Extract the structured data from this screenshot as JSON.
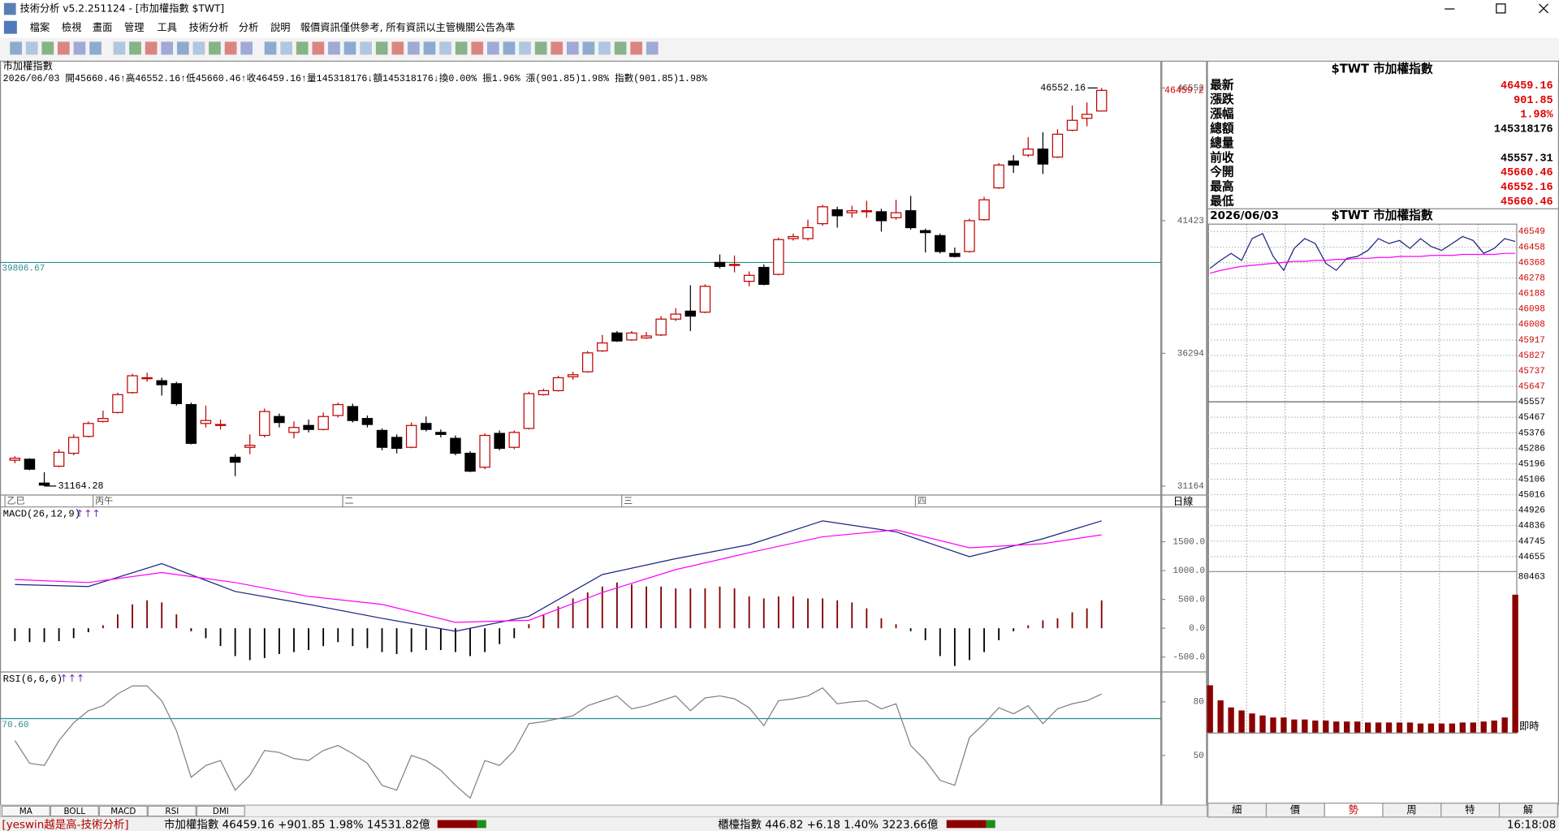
{
  "window": {
    "title": "技術分析 v5.2.251124 - [市加權指數 $TWT]",
    "menu": [
      "檔案",
      "檢視",
      "畫面",
      "管理",
      "工具",
      "技術分析",
      "分析",
      "說明"
    ],
    "notice": "報價資訊僅供參考, 所有資訊以主管機關公告為準"
  },
  "chart": {
    "type": "candlestick",
    "title": "市加權指數",
    "info": "2026/06/03 開45660.46↑高46552.16↑低45660.46↑收46459.16↑量145318176↓額145318176↓換0.00% 振1.96% 漲(901.85)1.98% 指數(901.85)1.98%",
    "ylim": [
      30818,
      47570
    ],
    "yticks": [
      31164,
      36294,
      41423,
      46552
    ],
    "reference": 39806.67,
    "last": 46459.2,
    "x_labels": [
      "乙巳",
      "丙午",
      "二",
      "三",
      "四"
    ],
    "period": "日線",
    "up_color": "#c00000",
    "down_color": "#000000",
    "reference_color": "#2e8b8b",
    "candles": [
      [
        32163,
        32317,
        32048,
        32240
      ],
      [
        32201,
        32240,
        31778,
        31817
      ],
      [
        31279,
        31701,
        31164.28,
        31202
      ],
      [
        31932,
        32585,
        31893,
        32470
      ],
      [
        32432,
        33161,
        32355,
        33046
      ],
      [
        33084,
        33661,
        33046,
        33584
      ],
      [
        33661,
        34084,
        33622,
        33776
      ],
      [
        34007,
        34775,
        33968,
        34698
      ],
      [
        34775,
        35505,
        34737,
        35428
      ],
      [
        35352,
        35545,
        35198,
        35352
      ],
      [
        35236,
        35352,
        34660,
        35082
      ],
      [
        35121,
        35198,
        34275,
        34352
      ],
      [
        34314,
        34390,
        32777,
        32816
      ],
      [
        33584,
        34275,
        33430,
        33699
      ],
      [
        33545,
        33738,
        33353,
        33545
      ],
      [
        32278,
        32393,
        31547,
        32086
      ],
      [
        32662,
        33161,
        32393,
        32739
      ],
      [
        33123,
        34160,
        33046,
        34045
      ],
      [
        33853,
        33968,
        33430,
        33622
      ],
      [
        33238,
        33661,
        33008,
        33430
      ],
      [
        33507,
        33738,
        33238,
        33353
      ],
      [
        33353,
        34007,
        33315,
        33853
      ],
      [
        33891,
        34390,
        33814,
        34314
      ],
      [
        34237,
        34352,
        33622,
        33699
      ],
      [
        33776,
        33891,
        33430,
        33545
      ],
      [
        33315,
        33392,
        32547,
        32662
      ],
      [
        33046,
        33161,
        32432,
        32624
      ],
      [
        32662,
        33622,
        32624,
        33507
      ],
      [
        33584,
        33853,
        33276,
        33353
      ],
      [
        33238,
        33353,
        33046,
        33161
      ],
      [
        33008,
        33123,
        32355,
        32432
      ],
      [
        32432,
        32509,
        31701,
        31740
      ],
      [
        31893,
        33200,
        31817,
        33123
      ],
      [
        33200,
        33315,
        32547,
        32624
      ],
      [
        32662,
        33315,
        32585,
        33238
      ],
      [
        33392,
        34813,
        33353,
        34737
      ],
      [
        34698,
        34929,
        34660,
        34852
      ],
      [
        34852,
        35428,
        34813,
        35352
      ],
      [
        35390,
        35582,
        35275,
        35467
      ],
      [
        35582,
        36389,
        35545,
        36312
      ],
      [
        36389,
        37004,
        36350,
        36696
      ],
      [
        37081,
        37158,
        36735,
        36773
      ],
      [
        36812,
        37158,
        36773,
        37081
      ],
      [
        36889,
        37119,
        36850,
        36966
      ],
      [
        37004,
        37734,
        36966,
        37618
      ],
      [
        37618,
        38041,
        37541,
        37810
      ],
      [
        37926,
        38925,
        37157,
        37734
      ],
      [
        37887,
        38963,
        37849,
        38886
      ],
      [
        39808,
        40115,
        39577,
        39654
      ],
      [
        39731,
        40077,
        39424,
        39731
      ],
      [
        39078,
        39462,
        38886,
        39309
      ],
      [
        39616,
        39731,
        38925,
        38963
      ],
      [
        39347,
        40769,
        39309,
        40692
      ],
      [
        40730,
        40922,
        40653,
        40807
      ],
      [
        40730,
        41461,
        40653,
        41153
      ],
      [
        41306,
        42036,
        41230,
        41959
      ],
      [
        41844,
        41959,
        41153,
        41614
      ],
      [
        41729,
        41998,
        41537,
        41806
      ],
      [
        41806,
        42190,
        41537,
        41806
      ],
      [
        41768,
        41883,
        40999,
        41422
      ],
      [
        41537,
        42229,
        41460,
        41729
      ],
      [
        41806,
        42382,
        41076,
        41153
      ],
      [
        41038,
        41115,
        40192,
        40961
      ],
      [
        40845,
        40922,
        40154,
        40230
      ],
      [
        40154,
        40384,
        40000,
        40038
      ],
      [
        40230,
        41499,
        40192,
        41422
      ],
      [
        41460,
        42344,
        41422,
        42229
      ],
      [
        42690,
        43651,
        42651,
        43574
      ],
      [
        43728,
        43958,
        43267,
        43574
      ],
      [
        43958,
        44649,
        43881,
        44188
      ],
      [
        44188,
        44841,
        43228,
        43612
      ],
      [
        43881,
        44956,
        43843,
        44764
      ],
      [
        44918,
        45878,
        44879,
        45302
      ],
      [
        45379,
        45994,
        45071,
        45533
      ],
      [
        45660.46,
        46552.16,
        45660.46,
        46459.16
      ]
    ],
    "macd": {
      "title": "MACD(26,12,9)",
      "arrows": "↑↑↑",
      "ylim": [
        -741,
        2069
      ],
      "yticks": [
        {
          "value": 1500,
          "label": "1500.0"
        },
        {
          "value": 1000,
          "label": "1000.0"
        },
        {
          "value": 500,
          "label": "500.0"
        },
        {
          "value": 0,
          "label": "0.0"
        },
        {
          "value": -500,
          "label": "-500.0"
        }
      ],
      "histogram": [
        -224,
        -241,
        -241,
        -224,
        -172,
        -69,
        52,
        241,
        414,
        483,
        448,
        241,
        -52,
        -172,
        -310,
        -483,
        -552,
        -517,
        -448,
        -414,
        -379,
        -310,
        -241,
        -310,
        -345,
        -414,
        -448,
        -414,
        -379,
        -379,
        -414,
        -483,
        -414,
        -276,
        -172,
        69,
        241,
        379,
        517,
        621,
        724,
        793,
        759,
        724,
        724,
        690,
        690,
        690,
        724,
        690,
        552,
        517,
        552,
        552,
        517,
        517,
        483,
        448,
        345,
        172,
        69,
        -52,
        -207,
        -483,
        -655,
        -552,
        -414,
        -207,
        -52,
        52,
        138,
        172,
        276,
        345,
        483
      ],
      "line_index": [
        0,
        5,
        10,
        15,
        20,
        25,
        30,
        35,
        40,
        45,
        50,
        55,
        60,
        65,
        70,
        74
      ],
      "dif": [
        759,
        724,
        1121,
        638,
        414,
        172,
        -52,
        207,
        931,
        1207,
        1448,
        1862,
        1672,
        1241,
        1552,
        1862
      ],
      "signal": [
        845,
        793,
        966,
        793,
        552,
        414,
        103,
        138,
        621,
        1017,
        1310,
        1586,
        1707,
        1396,
        1466,
        1621
      ],
      "up_color": "#800000",
      "down_color": "#000000",
      "dif_color": "#1a237e",
      "signal_color": "#ff00ff"
    },
    "rsi": {
      "title": "RSI(6,6,6)",
      "arrows": "↑↑↑",
      "ylim": [
        22.2,
        95.6
      ],
      "yticks": [
        80,
        50
      ],
      "reference": {
        "value": 70.6,
        "label": "70.60"
      },
      "color": "#808080",
      "values": [
        58.3,
        45.6,
        44.4,
        58.3,
        68.3,
        75.0,
        77.8,
        84.4,
        88.9,
        88.9,
        80.6,
        63.9,
        37.8,
        44.4,
        47.2,
        30.6,
        38.9,
        52.8,
        51.7,
        48.3,
        47.2,
        52.8,
        55.6,
        51.1,
        45.6,
        33.3,
        30.6,
        50.0,
        47.2,
        41.7,
        33.3,
        26.1,
        47.2,
        44.4,
        52.8,
        67.8,
        68.9,
        70.6,
        72.2,
        77.8,
        80.6,
        83.3,
        76.1,
        77.8,
        80.6,
        83.3,
        75.0,
        82.2,
        83.3,
        81.7,
        76.7,
        66.7,
        80.6,
        81.7,
        83.3,
        87.8,
        78.9,
        80.0,
        80.6,
        76.1,
        78.9,
        55.6,
        47.2,
        36.1,
        33.3,
        60.0,
        67.8,
        76.7,
        73.3,
        77.8,
        67.8,
        76.1,
        78.9,
        80.6,
        84.4
      ]
    },
    "indicator_tabs": [
      "MA",
      "BOLL",
      "MACD",
      "RSI",
      "DMI"
    ]
  },
  "quote": {
    "title": "$TWT 市加權指數",
    "rows": [
      {
        "label": "最新",
        "value": "46459.16"
      },
      {
        "label": "漲跌",
        "value": "901.85"
      },
      {
        "label": "漲幅",
        "value": "1.98%"
      },
      {
        "label": "總額",
        "value": "145318176"
      },
      {
        "label": "總量"
      },
      {
        "label": "前收",
        "value": "45557.31"
      },
      {
        "label": "今開",
        "value": "45660.46"
      },
      {
        "label": "最高",
        "value": "46552.16"
      },
      {
        "label": "最低",
        "value": "45660.46"
      }
    ]
  },
  "intraday": {
    "date": "2026/06/03",
    "title": "$TWT 市加權指數",
    "ylim": [
      44568,
      46595
    ],
    "yticks": [
      46549,
      46458,
      46368,
      46278,
      46188,
      46098,
      46008,
      45917,
      45827,
      45737,
      45647,
      45557,
      45467,
      45376,
      45286,
      45196,
      45106,
      45016,
      44926,
      44836,
      44745,
      44655
    ],
    "price": [
      46335,
      46381,
      46422,
      46381,
      46508,
      46537,
      46404,
      46323,
      46451,
      46508,
      46479,
      46364,
      46323,
      46393,
      46404,
      46439,
      46508,
      46479,
      46497,
      46451,
      46508,
      46462,
      46439,
      46479,
      46520,
      46497,
      46422,
      46451,
      46508,
      46491
    ],
    "average": [
      46306,
      46323,
      46335,
      46346,
      46352,
      46358,
      46364,
      46369,
      46375,
      46375,
      46381,
      46381,
      46387,
      46387,
      46393,
      46393,
      46398,
      46398,
      46404,
      46404,
      46404,
      46410,
      46410,
      46410,
      46416,
      46416,
      46416,
      46416,
      46422,
      46422
    ],
    "price_color": "#1a237e",
    "average_color": "#ff00ff",
    "volume_color": "#8b0000",
    "volume": [
      24088,
      16400,
      12813,
      11275,
      9738,
      8713,
      7688,
      7688,
      6663,
      6663,
      6150,
      6150,
      5638,
      5638,
      5638,
      5125,
      5125,
      5125,
      5125,
      5125,
      4613,
      4613,
      4613,
      4613,
      5125,
      5125,
      5638,
      6150,
      7688,
      70213
    ],
    "volume_ylim": [
      0,
      80463
    ],
    "volume_ticks": [
      80463
    ],
    "live": "即時",
    "tabs": [
      "細",
      "價",
      "勢",
      "周",
      "特",
      "解"
    ]
  },
  "status": {
    "source": "[yeswin越是高-技術分析]",
    "main": "市加權指數 46459.16 +901.85 1.98% 14531.82億",
    "otc": "櫃檯指數 446.82 +6.18 1.40% 3223.66億",
    "time": "16:18:08"
  }
}
